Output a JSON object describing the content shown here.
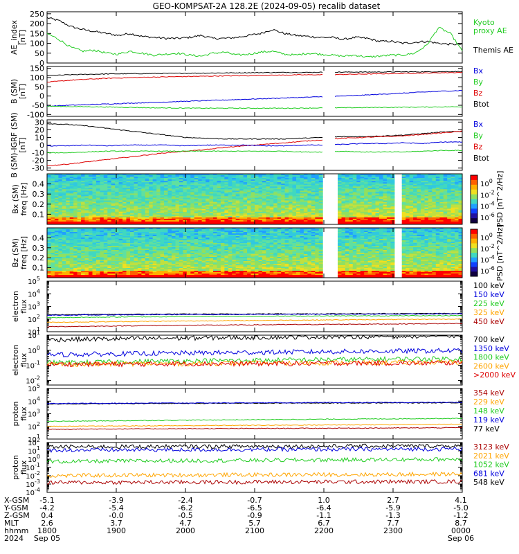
{
  "title": "GEO-KOMPSAT-2A 128.2E (2024-09-05) recalib dataset",
  "colors": {
    "black": "#000000",
    "red": "#dd0000",
    "green": "#00cc00",
    "blue": "#0000dd",
    "orange": "#ffa500",
    "darkred": "#aa0000",
    "lightgreen": "#22dd22",
    "cyan": "#00bbbb"
  },
  "panels": [
    {
      "id": "ae",
      "ylabel": [
        "AE_index",
        "[nT]"
      ],
      "yticks": [
        "250",
        "200",
        "150",
        "100",
        "50",
        "0"
      ],
      "legend": [
        {
          "label": "Kyoto",
          "color": "#22cc22"
        },
        {
          "label": "proxy AE",
          "color": "#22cc22"
        },
        {
          "label": "Themis AE",
          "color": "#000000"
        }
      ]
    },
    {
      "id": "bsm",
      "ylabel": [
        "B (SM)",
        "[nT]"
      ],
      "yticks": [
        "150",
        "100",
        "50",
        "0",
        "-50",
        "-100"
      ],
      "legend": [
        {
          "label": "Bx",
          "color": "#0000dd"
        },
        {
          "label": "By",
          "color": "#22cc22"
        },
        {
          "label": "Bz",
          "color": "#dd0000"
        },
        {
          "label": "Btot",
          "color": "#000000"
        }
      ]
    },
    {
      "id": "bigrf",
      "ylabel": [
        "B (SM)-IGRF (SM)",
        "[nT]"
      ],
      "yticks": [
        "30",
        "20",
        "10",
        "0",
        "-10",
        "-20",
        "-30"
      ],
      "legend": [
        {
          "label": "Bx",
          "color": "#0000dd"
        },
        {
          "label": "By",
          "color": "#22cc22"
        },
        {
          "label": "Bz",
          "color": "#dd0000"
        },
        {
          "label": "Btot",
          "color": "#000000"
        }
      ]
    },
    {
      "id": "bxspec",
      "ylabel": [
        "Bx (SM)",
        "freq [Hz]"
      ],
      "yticks": [
        "0.4",
        "0.3",
        "0.2",
        "0.1"
      ],
      "cbar_ticks": [
        "10^0",
        "10^-2",
        "10^-4",
        "10^-6"
      ],
      "cbar_label": "PSD [nT^2/Hz]"
    },
    {
      "id": "bzspec",
      "ylabel": [
        "Bz (SM)",
        "freq [Hz]"
      ],
      "yticks": [
        "0.4",
        "0.3",
        "0.2",
        "0.1"
      ],
      "cbar_ticks": [
        "10^0",
        "10^-2",
        "10^-4",
        "10^-6"
      ],
      "cbar_label": "PSD [nT^2/Hz]"
    },
    {
      "id": "elec_low",
      "ylabel": [
        "electron",
        "flux"
      ],
      "yticks": [
        "10^5",
        "10^4",
        "10^3",
        "10^2",
        "10^1"
      ],
      "legend": [
        {
          "label": "100 keV",
          "color": "#000000"
        },
        {
          "label": "150 keV",
          "color": "#0000dd"
        },
        {
          "label": "225 keV",
          "color": "#22cc22"
        },
        {
          "label": "325 keV",
          "color": "#ffa500"
        },
        {
          "label": "450 keV",
          "color": "#aa0000"
        }
      ]
    },
    {
      "id": "elec_high",
      "ylabel": [
        "electron",
        "flux"
      ],
      "yticks": [
        "10^1",
        "10^0",
        "10^-1",
        "10^-2"
      ],
      "legend": [
        {
          "label": "700 keV",
          "color": "#000000"
        },
        {
          "label": "1350 keV",
          "color": "#0000dd"
        },
        {
          "label": "1800 keV",
          "color": "#22cc22"
        },
        {
          "label": "2600 keV",
          "color": "#ffa500"
        },
        {
          "label": ">2000 keV",
          "color": "#dd0000"
        }
      ]
    },
    {
      "id": "prot_low",
      "ylabel": [
        "proton",
        "flux"
      ],
      "yticks": [
        "10^5",
        "10^4",
        "10^3",
        "10^2",
        "10^1"
      ],
      "legend": [
        {
          "label": "354 keV",
          "color": "#aa0000"
        },
        {
          "label": "229 keV",
          "color": "#ffa500"
        },
        {
          "label": "148 keV",
          "color": "#22cc22"
        },
        {
          "label": "119 keV",
          "color": "#0000dd"
        },
        {
          "label": "77 keV",
          "color": "#000000"
        }
      ]
    },
    {
      "id": "prot_high",
      "ylabel": [
        "proton",
        "flux"
      ],
      "yticks": [
        "10^2",
        "10^1",
        "10^0",
        "10^-1",
        "10^-2",
        "10^-3",
        "10^-4"
      ],
      "legend": [
        {
          "label": "3123 keV",
          "color": "#aa0000"
        },
        {
          "label": "2021 keV",
          "color": "#ffa500"
        },
        {
          "label": "1052 keV",
          "color": "#22cc22"
        },
        {
          "label": "681 keV",
          "color": "#0000dd"
        },
        {
          "label": "548 keV",
          "color": "#000000"
        }
      ]
    }
  ],
  "xaxis": {
    "row_labels": [
      "X-GSM",
      "Y-GSM",
      "Z-GSM",
      "MLT",
      "hhmm",
      "2024"
    ],
    "columns": [
      [
        "-5.1",
        "-4.2",
        "0.4",
        "2.6",
        "1800",
        "Sep 05"
      ],
      [
        "-3.9",
        "-5.4",
        "-0.0",
        "3.7",
        "1900",
        ""
      ],
      [
        "-2.4",
        "-6.2",
        "-0.5",
        "4.7",
        "2000",
        ""
      ],
      [
        "-0.7",
        "-6.5",
        "-0.9",
        "5.7",
        "2100",
        ""
      ],
      [
        "1.0",
        "-6.4",
        "-1.1",
        "6.7",
        "2200",
        ""
      ],
      [
        "2.7",
        "-5.9",
        "-1.3",
        "7.7",
        "2300",
        ""
      ],
      [
        "4.1",
        "-5.0",
        "-1.2",
        "8.7",
        "0000",
        "Sep 06"
      ]
    ]
  },
  "chart_data": {
    "type": "line",
    "x_range": [
      "2024-09-05 18:00",
      "2024-09-06 00:00"
    ],
    "series": [
      {
        "panel": "ae",
        "name": "Themis AE",
        "values": [
          230,
          215,
          185,
          170,
          160,
          150,
          140,
          150,
          135,
          130,
          125,
          125,
          130,
          140,
          125,
          125,
          130,
          140,
          150,
          170,
          150,
          140,
          135,
          130,
          130,
          120,
          130,
          125,
          110,
          110,
          100,
          105,
          110,
          100,
          95,
          95
        ]
      },
      {
        "panel": "ae",
        "name": "Kyoto proxy AE",
        "values": [
          150,
          120,
          80,
          60,
          65,
          50,
          45,
          60,
          50,
          40,
          45,
          50,
          40,
          35,
          50,
          55,
          40,
          45,
          55,
          60,
          45,
          40,
          50,
          45,
          40,
          35,
          40,
          30,
          35,
          40,
          40,
          50,
          90,
          180,
          150,
          60
        ]
      },
      {
        "panel": "bsm",
        "name": "Btot",
        "values": [
          110,
          115,
          118,
          120,
          121,
          122,
          123,
          124,
          125,
          126,
          127,
          128,
          128,
          129,
          130,
          130,
          131,
          131,
          132,
          133
        ]
      },
      {
        "panel": "bsm",
        "name": "Bz",
        "values": [
          75,
          85,
          92,
          97,
          100,
          103,
          105,
          107,
          109,
          110,
          112,
          114,
          115,
          116,
          118,
          120,
          122,
          124,
          126,
          128
        ]
      },
      {
        "panel": "bsm",
        "name": "Bx",
        "values": [
          -55,
          -50,
          -46,
          -42,
          -38,
          -34,
          -30,
          -26,
          -22,
          -18,
          -14,
          -10,
          -6,
          -2,
          2,
          8,
          14,
          20,
          26,
          30
        ]
      },
      {
        "panel": "bsm",
        "name": "By",
        "values": [
          -55,
          -57,
          -58,
          -60,
          -62,
          -64,
          -65,
          -66,
          -66,
          -66,
          -66,
          -66,
          -65,
          -64,
          -63,
          -62,
          -61,
          -60,
          -59,
          -58
        ]
      },
      {
        "panel": "bigrf",
        "name": "Btot",
        "values": [
          28,
          27,
          25,
          22,
          19,
          16,
          13,
          10,
          9,
          8,
          8,
          8,
          8,
          9,
          10,
          11,
          11,
          12,
          13,
          15,
          17,
          18
        ]
      },
      {
        "panel": "bigrf",
        "name": "Bz",
        "values": [
          -27,
          -25,
          -22,
          -19,
          -16,
          -13,
          -10,
          -8,
          -6,
          -3,
          -1,
          1,
          3,
          5,
          7,
          9,
          10,
          11,
          12,
          14,
          16,
          18
        ]
      },
      {
        "panel": "bigrf",
        "name": "Bx",
        "values": [
          -1,
          -1,
          0,
          -1,
          0,
          0,
          0,
          -1,
          0,
          0,
          0,
          -1,
          -1,
          0,
          0,
          1,
          2,
          2,
          3,
          2,
          4,
          4
        ]
      },
      {
        "panel": "bigrf",
        "name": "By",
        "values": [
          -10,
          -10,
          -9,
          -8,
          -8,
          -8,
          -8,
          -8,
          -8,
          -8,
          -8,
          -8,
          -8,
          -9,
          -9,
          -8,
          -9,
          -9,
          -9,
          -8,
          -7,
          -7
        ]
      },
      {
        "panel": "elec_low",
        "name": "100 keV",
        "values": [
          220,
          230,
          240,
          250,
          250,
          260,
          260,
          270,
          270,
          280
        ]
      },
      {
        "panel": "elec_low",
        "name": "150 keV",
        "values": [
          200,
          210,
          220,
          230,
          230,
          240,
          240,
          250,
          250,
          260
        ]
      },
      {
        "panel": "elec_low",
        "name": "225 keV",
        "values": [
          130,
          140,
          150,
          160,
          165,
          170,
          175,
          180,
          185,
          190
        ]
      },
      {
        "panel": "elec_low",
        "name": "325 keV",
        "values": [
          55,
          60,
          65,
          70,
          75,
          80,
          85,
          90,
          95,
          100
        ]
      },
      {
        "panel": "elec_low",
        "name": "450 keV",
        "values": [
          25,
          27,
          30,
          32,
          34,
          36,
          38,
          40,
          42,
          45
        ]
      },
      {
        "panel": "elec_high",
        "name": "700 keV",
        "values": [
          5,
          5.5,
          6,
          6.5,
          7,
          7.5,
          8,
          8.5,
          9,
          9.5
        ]
      },
      {
        "panel": "elec_high",
        "name": "1350 keV",
        "values": [
          0.5,
          0.55,
          0.6,
          0.65,
          0.7,
          0.75,
          0.8,
          0.85,
          0.9,
          0.95
        ]
      },
      {
        "panel": "elec_high",
        "name": "1800 keV",
        "values": [
          0.15,
          0.16,
          0.18,
          0.2,
          0.21,
          0.22,
          0.24,
          0.25,
          0.27,
          0.28
        ]
      },
      {
        "panel": "elec_high",
        "name": "2600 keV",
        "values": [
          0.12,
          0.12,
          0.13,
          0.13,
          0.14,
          0.14,
          0.15,
          0.15,
          0.16,
          0.16
        ]
      },
      {
        "panel": "elec_high",
        "name": ">2000 keV",
        "values": [
          0.12,
          0.12,
          0.12,
          0.13,
          0.13,
          0.13,
          0.14,
          0.14,
          0.14,
          0.15
        ]
      },
      {
        "panel": "prot_low",
        "name": "77 keV",
        "values": [
          6000,
          6200,
          6500,
          6600,
          6800,
          7000,
          7100,
          7200,
          7300,
          7500
        ]
      },
      {
        "panel": "prot_low",
        "name": "119 keV",
        "values": [
          6500,
          6700,
          7000,
          7100,
          7300,
          7500,
          7600,
          7700,
          7800,
          8000
        ]
      },
      {
        "panel": "prot_low",
        "name": "148 keV",
        "values": [
          250,
          270,
          290,
          310,
          330,
          350,
          370,
          390,
          410,
          430
        ]
      },
      {
        "panel": "prot_low",
        "name": "229 keV",
        "values": [
          100,
          105,
          110,
          115,
          120,
          125,
          130,
          135,
          140,
          150
        ]
      },
      {
        "panel": "prot_low",
        "name": "354 keV",
        "values": [
          60,
          62,
          64,
          66,
          68,
          70,
          72,
          74,
          76,
          80
        ]
      },
      {
        "panel": "prot_high",
        "name": "548 keV",
        "values": [
          30,
          31,
          32,
          33,
          34,
          35,
          36,
          37,
          38,
          40
        ]
      },
      {
        "panel": "prot_high",
        "name": "681 keV",
        "values": [
          12,
          12.5,
          13,
          13.5,
          14,
          14.5,
          15,
          15.5,
          16,
          17
        ]
      },
      {
        "panel": "prot_high",
        "name": "1052 keV",
        "values": [
          0.5,
          0.55,
          0.6,
          0.65,
          0.7,
          0.75,
          0.8,
          0.85,
          0.9,
          1
        ]
      },
      {
        "panel": "prot_high",
        "name": "2021 keV",
        "values": [
          0.01,
          0.011,
          0.012,
          0.012,
          0.013,
          0.013,
          0.014,
          0.014,
          0.015,
          0.016
        ]
      },
      {
        "panel": "prot_high",
        "name": "3123 keV",
        "values": [
          0.0015,
          0.0016,
          0.0016,
          0.0017,
          0.0017,
          0.0018,
          0.0018,
          0.0019,
          0.0019,
          0.002
        ]
      }
    ]
  }
}
